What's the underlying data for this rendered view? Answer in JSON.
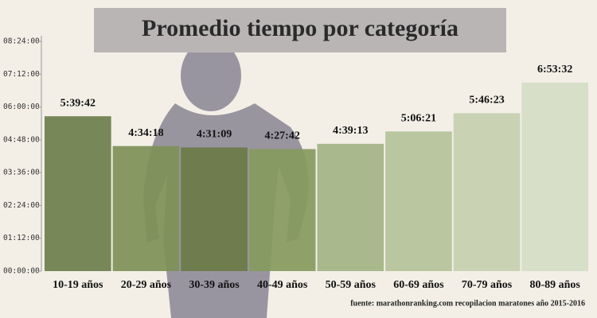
{
  "chart_data": {
    "type": "bar",
    "title": "Promedio tiempo por categoría",
    "source": "fuente: marathonranking.com recopilacion maratones año 2015-2016",
    "categories": [
      "10-19 años",
      "20-29 años",
      "30-39 años",
      "40-49 años",
      "50-59 años",
      "60-69 años",
      "70-79 años",
      "80-89 años"
    ],
    "values": [
      20382,
      16458,
      16269,
      16062,
      16753,
      18381,
      20783,
      24812
    ],
    "value_labels": [
      "5:39:42",
      "4:34:18",
      "4:31:09",
      "4:27:42",
      "4:39:13",
      "5:06:21",
      "5:46:23",
      "6:53:32"
    ],
    "colors": [
      "#6d7e4b",
      "#7e9058",
      "#6a7a47",
      "#879a5e",
      "#a3b385",
      "#b4c29a",
      "#c5d0b0",
      "#d5ddc6"
    ],
    "ylim": [
      0,
      30240
    ],
    "yticks": [
      {
        "value": 0,
        "label": "00:00:00"
      },
      {
        "value": 4320,
        "label": "01:12:00"
      },
      {
        "value": 8640,
        "label": "02:24:00"
      },
      {
        "value": 12960,
        "label": "03:36:00"
      },
      {
        "value": 17280,
        "label": "04:48:00"
      },
      {
        "value": 21600,
        "label": "06:00:00"
      },
      {
        "value": 25920,
        "label": "07:12:00"
      },
      {
        "value": 30240,
        "label": "08:24:00"
      }
    ],
    "grid": false
  }
}
